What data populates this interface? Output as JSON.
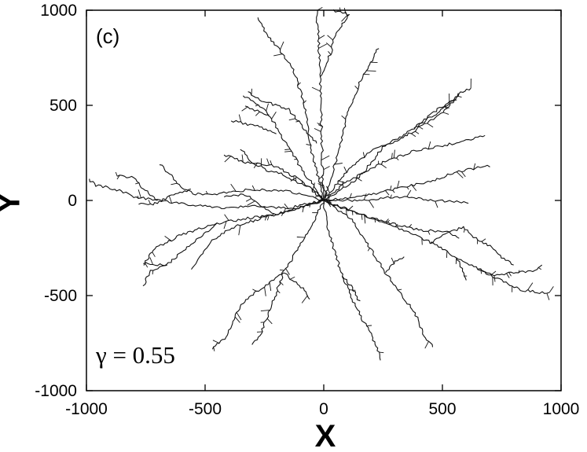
{
  "chart_data": {
    "type": "scatter",
    "title": "",
    "xlabel": "X",
    "ylabel": "Y",
    "xlim": [
      -1000,
      1000
    ],
    "ylim": [
      -1000,
      1000
    ],
    "x_ticks": [
      "-1000",
      "-500",
      "0",
      "500",
      "1000"
    ],
    "y_ticks": [
      "1000",
      "500",
      "0",
      "-500",
      "-1000"
    ],
    "grid": false,
    "legend": "none",
    "annotations": {
      "panel": "(c)",
      "parameter": "γ = 0.55"
    },
    "branch_color": "#111111",
    "series": [
      {
        "values": [
          [
            0,
            0
          ],
          [
            -20,
            100
          ],
          [
            -60,
            300
          ],
          [
            -80,
            500
          ],
          [
            -130,
            700
          ],
          [
            -180,
            780
          ],
          [
            -240,
            870
          ],
          [
            -280,
            960
          ]
        ]
      },
      {
        "values": [
          [
            0,
            0
          ],
          [
            -5,
            150
          ],
          [
            -10,
            400
          ],
          [
            -15,
            600
          ],
          [
            -20,
            800
          ],
          [
            -30,
            1000
          ]
        ]
      },
      {
        "values": [
          [
            -15,
            650
          ],
          [
            30,
            780
          ],
          [
            50,
            880
          ],
          [
            110,
            975
          ],
          [
            40,
            1000
          ]
        ]
      },
      {
        "values": [
          [
            0,
            0
          ],
          [
            50,
            200
          ],
          [
            100,
            450
          ],
          [
            150,
            620
          ],
          [
            230,
            800
          ]
        ]
      },
      {
        "values": [
          [
            0,
            0
          ],
          [
            -90,
            160
          ],
          [
            -160,
            300
          ],
          [
            -230,
            450
          ],
          [
            -290,
            520
          ],
          [
            -340,
            550
          ]
        ]
      },
      {
        "values": [
          [
            -200,
            350
          ],
          [
            -280,
            390
          ],
          [
            -390,
            420
          ]
        ]
      },
      {
        "values": [
          [
            -230,
            450
          ],
          [
            -300,
            480
          ],
          [
            -330,
            500
          ]
        ]
      },
      {
        "values": [
          [
            -30,
            300
          ],
          [
            -150,
            480
          ],
          [
            -250,
            520
          ],
          [
            -320,
            570
          ]
        ]
      },
      {
        "values": [
          [
            0,
            0
          ],
          [
            -90,
            100
          ],
          [
            -200,
            180
          ],
          [
            -330,
            200
          ],
          [
            -420,
            240
          ]
        ]
      },
      {
        "values": [
          [
            0,
            0
          ],
          [
            -170,
            55
          ],
          [
            -330,
            55
          ],
          [
            -440,
            35
          ],
          [
            -540,
            35
          ],
          [
            -600,
            60
          ],
          [
            -650,
            140
          ],
          [
            -690,
            190
          ]
        ]
      },
      {
        "values": [
          [
            -210,
            -70
          ],
          [
            -330,
            30
          ],
          [
            -420,
            20
          ]
        ]
      },
      {
        "values": [
          [
            -560,
            60
          ],
          [
            -650,
            20
          ],
          [
            -720,
            -20
          ],
          [
            -780,
            -20
          ]
        ]
      },
      {
        "values": [
          [
            0,
            0
          ],
          [
            -150,
            -60
          ],
          [
            -300,
            -90
          ],
          [
            -450,
            -120
          ],
          [
            -600,
            -180
          ],
          [
            -720,
            -260
          ],
          [
            -760,
            -340
          ]
        ]
      },
      {
        "values": [
          [
            -450,
            -120
          ],
          [
            -520,
            -190
          ],
          [
            -600,
            -270
          ],
          [
            -660,
            -340
          ],
          [
            -730,
            -370
          ],
          [
            -760,
            -450
          ]
        ]
      },
      {
        "values": [
          [
            -660,
            -340
          ],
          [
            -760,
            -330
          ]
        ]
      },
      {
        "values": [
          [
            0,
            0
          ],
          [
            -150,
            -40
          ],
          [
            -300,
            -30
          ],
          [
            -420,
            -40
          ],
          [
            -580,
            -20
          ],
          [
            -700,
            0
          ],
          [
            -800,
            20
          ],
          [
            -880,
            60
          ],
          [
            -960,
            80
          ],
          [
            -990,
            110
          ]
        ]
      },
      {
        "values": [
          [
            -700,
            0
          ],
          [
            -760,
            60
          ],
          [
            -800,
            120
          ],
          [
            -870,
            130
          ]
        ]
      },
      {
        "values": [
          [
            0,
            0
          ],
          [
            -60,
            -150
          ],
          [
            -110,
            -260
          ],
          [
            -170,
            -380
          ],
          [
            -260,
            -460
          ],
          [
            -330,
            -520
          ],
          [
            -370,
            -600
          ],
          [
            -410,
            -720
          ],
          [
            -470,
            -780
          ]
        ]
      },
      {
        "values": [
          [
            -170,
            -380
          ],
          [
            -210,
            -520
          ],
          [
            -240,
            -620
          ],
          [
            -270,
            -710
          ],
          [
            -300,
            -760
          ]
        ]
      },
      {
        "values": [
          [
            -170,
            -380
          ],
          [
            -80,
            -470
          ],
          [
            -60,
            -520
          ]
        ]
      },
      {
        "values": [
          [
            0,
            0
          ],
          [
            10,
            -100
          ],
          [
            40,
            -250
          ],
          [
            80,
            -400
          ],
          [
            120,
            -520
          ],
          [
            160,
            -620
          ],
          [
            200,
            -700
          ],
          [
            230,
            -800
          ],
          [
            240,
            -840
          ]
        ]
      },
      {
        "values": [
          [
            80,
            -400
          ],
          [
            120,
            -460
          ],
          [
            150,
            -530
          ]
        ]
      },
      {
        "values": [
          [
            0,
            0
          ],
          [
            120,
            -100
          ],
          [
            200,
            -260
          ],
          [
            260,
            -380
          ],
          [
            330,
            -500
          ],
          [
            380,
            -580
          ],
          [
            420,
            -700
          ],
          [
            460,
            -770
          ]
        ]
      },
      {
        "values": [
          [
            260,
            -380
          ],
          [
            300,
            -320
          ],
          [
            340,
            -300
          ]
        ]
      },
      {
        "values": [
          [
            0,
            0
          ],
          [
            150,
            -70
          ],
          [
            300,
            -140
          ],
          [
            450,
            -220
          ],
          [
            560,
            -300
          ],
          [
            650,
            -360
          ],
          [
            750,
            -420
          ],
          [
            830,
            -470
          ],
          [
            890,
            -480
          ],
          [
            950,
            -490
          ]
        ]
      },
      {
        "values": [
          [
            650,
            -360
          ],
          [
            720,
            -390
          ],
          [
            800,
            -380
          ],
          [
            880,
            -370
          ],
          [
            920,
            -340
          ]
        ]
      },
      {
        "values": [
          [
            450,
            -220
          ],
          [
            520,
            -170
          ],
          [
            590,
            -140
          ],
          [
            640,
            -200
          ],
          [
            700,
            -240
          ],
          [
            750,
            -300
          ],
          [
            800,
            -340
          ]
        ]
      },
      {
        "values": [
          [
            560,
            -300
          ],
          [
            600,
            -420
          ]
        ]
      },
      {
        "values": [
          [
            0,
            0
          ],
          [
            120,
            -60
          ],
          [
            280,
            -120
          ],
          [
            420,
            -160
          ],
          [
            520,
            -160
          ],
          [
            570,
            -200
          ]
        ]
      },
      {
        "values": [
          [
            0,
            0
          ],
          [
            150,
            20
          ],
          [
            300,
            60
          ],
          [
            450,
            100
          ],
          [
            560,
            150
          ],
          [
            640,
            170
          ],
          [
            700,
            180
          ]
        ]
      },
      {
        "values": [
          [
            0,
            0
          ],
          [
            100,
            100
          ],
          [
            250,
            200
          ],
          [
            380,
            260
          ],
          [
            460,
            280
          ],
          [
            550,
            300
          ],
          [
            620,
            320
          ],
          [
            680,
            340
          ]
        ]
      },
      {
        "values": [
          [
            0,
            0
          ],
          [
            150,
            120
          ],
          [
            250,
            280
          ],
          [
            380,
            380
          ],
          [
            480,
            460
          ],
          [
            570,
            560
          ],
          [
            620,
            590
          ]
        ]
      },
      {
        "values": [
          [
            380,
            380
          ],
          [
            440,
            440
          ],
          [
            480,
            480
          ],
          [
            540,
            520
          ],
          [
            570,
            560
          ]
        ]
      },
      {
        "values": [
          [
            0,
            0
          ],
          [
            100,
            160
          ],
          [
            200,
            260
          ],
          [
            300,
            310
          ],
          [
            400,
            380
          ],
          [
            480,
            440
          ],
          [
            530,
            500
          ],
          [
            560,
            530
          ]
        ]
      },
      {
        "values": [
          [
            0,
            0
          ],
          [
            150,
            0
          ],
          [
            300,
            20
          ],
          [
            480,
            0
          ],
          [
            610,
            -10
          ]
        ]
      },
      {
        "values": [
          [
            0,
            0
          ],
          [
            -280,
            -100
          ],
          [
            -380,
            -140
          ],
          [
            -470,
            -210
          ],
          [
            -520,
            -300
          ],
          [
            -560,
            -360
          ]
        ]
      },
      {
        "values": [
          [
            0,
            0
          ],
          [
            -40,
            60
          ],
          [
            -100,
            90
          ],
          [
            -180,
            140
          ],
          [
            -240,
            160
          ],
          [
            -300,
            200
          ],
          [
            -350,
            270
          ]
        ]
      },
      {
        "values": [
          [
            0,
            0
          ],
          [
            10,
            40
          ],
          [
            -10,
            100
          ]
        ]
      }
    ]
  }
}
